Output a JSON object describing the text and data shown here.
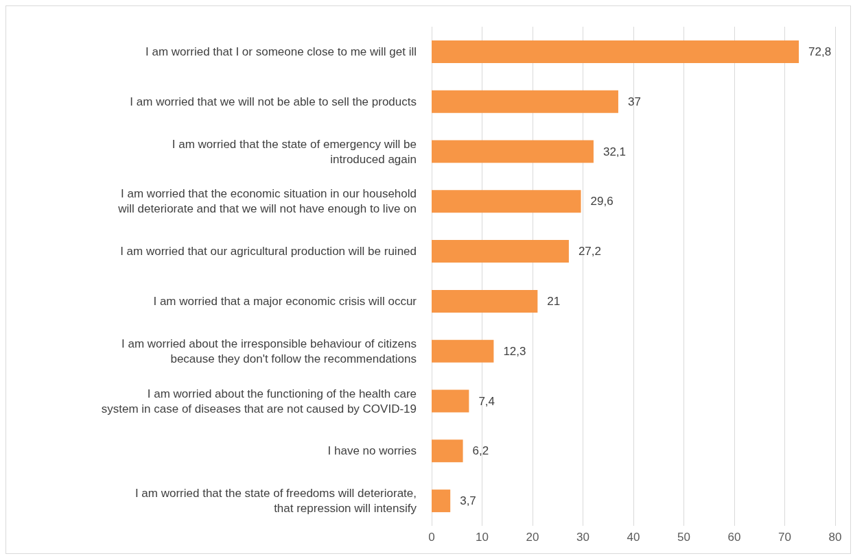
{
  "chart_data": {
    "type": "bar",
    "orientation": "horizontal",
    "categories": [
      "I am worried that I or someone close to me will get ill",
      "I am worried that we will not be able to sell the products",
      "I am worried that the state of emergency will be\nintroduced again",
      "I am worried that the economic situation in our household\nwill deteriorate and that we will not have enough to live on",
      "I am worried that our agricultural production will be ruined",
      "I am worried that a major economic crisis will occur",
      "I am worried about the irresponsible behaviour of citizens\nbecause they don't follow the recommendations",
      "I am worried about the functioning of the health care\nsystem in case of diseases that are not caused by COVID-19",
      "I have no worries",
      "I am worried that the state of freedoms will deteriorate,\nthat repression will intensify"
    ],
    "values": [
      72.8,
      37,
      32.1,
      29.6,
      27.2,
      21,
      12.3,
      7.4,
      6.2,
      3.7
    ],
    "value_labels": [
      "72,8",
      "37",
      "32,1",
      "29,6",
      "27,2",
      "21",
      "12,3",
      "7,4",
      "6,2",
      "3,7"
    ],
    "color": "#f79646",
    "xlim": [
      0,
      80
    ],
    "xticks": [
      0,
      10,
      20,
      30,
      40,
      50,
      60,
      70,
      80
    ],
    "grid": "x"
  }
}
